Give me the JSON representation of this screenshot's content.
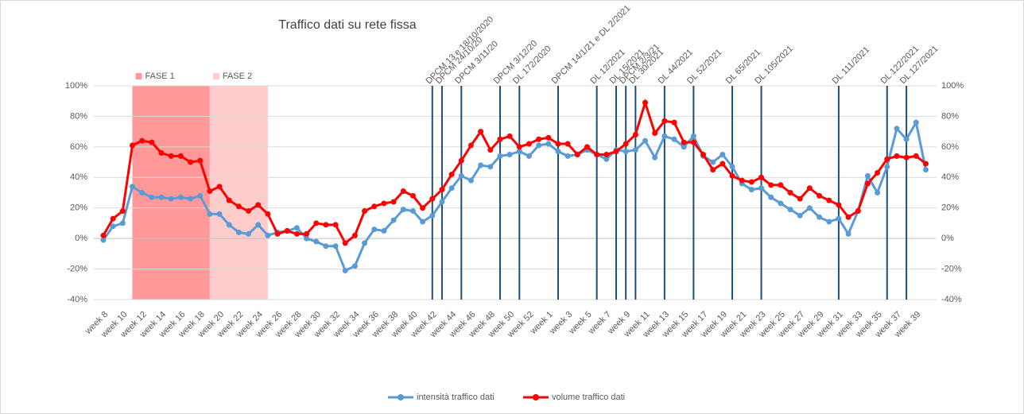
{
  "chart_data": {
    "type": "line",
    "title": "Traffico dati su rete fissa",
    "categories": [
      "week 8",
      null,
      "week 10",
      null,
      "week 12",
      null,
      "week 14",
      null,
      "week 16",
      null,
      "week 18",
      null,
      "week 20",
      null,
      "week 22",
      null,
      "week 24",
      null,
      "week 26",
      null,
      "week 28",
      null,
      "week 30",
      null,
      "week 32",
      null,
      "week 34",
      null,
      "week 36",
      null,
      "week 38",
      null,
      "week 40",
      null,
      "week 42",
      null,
      "week 44",
      null,
      "week 46",
      null,
      "week 48",
      null,
      "week 50",
      null,
      "week 52",
      null,
      "week 1",
      null,
      "week 3",
      null,
      "week 5",
      null,
      "week 7",
      null,
      "week 9",
      null,
      "week 11",
      null,
      "week 13",
      null,
      "week 15",
      null,
      "week 17",
      null,
      "week 19",
      null,
      "week 21",
      null,
      "week 23",
      null,
      "week 25",
      null,
      "week 27",
      null,
      "week 29",
      null,
      "week 31",
      null,
      "week 33",
      null,
      "week 35",
      null,
      "week 37",
      null,
      "week 39",
      null
    ],
    "series": [
      {
        "name": "intensità traffico dati",
        "color": "#5b9bd5",
        "values": [
          -1,
          8,
          10,
          34,
          30,
          27,
          27,
          26,
          27,
          26,
          28,
          16,
          16,
          9,
          4,
          3,
          9,
          2,
          4,
          5,
          7,
          0,
          -2,
          -5,
          -5,
          -21,
          -18,
          -3,
          6,
          5,
          12,
          19,
          18,
          11,
          15,
          24,
          33,
          41,
          38,
          48,
          47,
          54,
          55,
          57,
          54,
          61,
          62,
          57,
          54,
          55,
          58,
          55,
          52,
          58,
          57,
          58,
          64,
          53,
          67,
          65,
          60,
          67,
          54,
          50,
          55,
          47,
          36,
          32,
          33,
          27,
          23,
          19,
          15,
          20,
          14,
          11,
          13,
          3,
          18,
          41,
          30,
          47,
          72,
          65,
          76,
          45
        ]
      },
      {
        "name": "volume traffico dati",
        "color": "#ff0000",
        "values": [
          2,
          13,
          18,
          61,
          64,
          63,
          56,
          54,
          54,
          50,
          51,
          31,
          34,
          25,
          21,
          18,
          22,
          16,
          3,
          5,
          3,
          3,
          10,
          9,
          9,
          -3,
          2,
          18,
          21,
          23,
          24,
          31,
          28,
          20,
          26,
          32,
          42,
          51,
          61,
          70,
          58,
          65,
          67,
          60,
          62,
          65,
          66,
          62,
          62,
          55,
          60,
          55,
          55,
          57,
          62,
          68,
          89,
          69,
          77,
          76,
          63,
          63,
          55,
          45,
          49,
          41,
          38,
          37,
          40,
          35,
          35,
          30,
          26,
          33,
          28,
          25,
          22,
          14,
          18,
          36,
          43,
          52,
          54,
          53,
          54,
          49
        ]
      }
    ],
    "ylim": [
      -40,
      100
    ],
    "yticks": [
      {
        "value": -40,
        "label": "-40%"
      },
      {
        "value": -20,
        "label": "-20%"
      },
      {
        "value": 0,
        "label": "0%"
      },
      {
        "value": 20,
        "label": "20%"
      },
      {
        "value": 40,
        "label": "40%"
      },
      {
        "value": 60,
        "label": "60%"
      },
      {
        "value": 80,
        "label": "80%"
      },
      {
        "value": 100,
        "label": "100%"
      }
    ],
    "y2lim": [
      -40,
      100
    ],
    "y2ticks": [
      {
        "value": -40,
        "label": "-40%"
      },
      {
        "value": -20,
        "label": "-20%"
      },
      {
        "value": 0,
        "label": "0%"
      },
      {
        "value": 20,
        "label": "20%"
      },
      {
        "value": 40,
        "label": "40%"
      },
      {
        "value": 60,
        "label": "60%"
      },
      {
        "value": 80,
        "label": "80%"
      },
      {
        "value": 100,
        "label": "100%"
      }
    ],
    "bands": [
      {
        "label": "FASE 1",
        "from": 3,
        "to": 11,
        "color": "#ff9999"
      },
      {
        "label": "FASE 2",
        "from": 11,
        "to": 17,
        "color": "#ffcccc"
      }
    ],
    "annotations": [
      {
        "text": "DPCM 13 e 18/10/2020",
        "at": 34
      },
      {
        "text": "DPCM 24/10/20",
        "at": 35
      },
      {
        "text": "DPCM 3/11/20",
        "at": 37
      },
      {
        "text": "DPCM 3/12/20",
        "at": 41
      },
      {
        "text": "DL 172/2020",
        "at": 43
      },
      {
        "text": "DPCM 14/1/21 e DL 2/2021",
        "at": 47
      },
      {
        "text": "DL 12/2021",
        "at": 51
      },
      {
        "text": "DL 15/2021",
        "at": 53
      },
      {
        "text": "DPCM 2/3/21",
        "at": 54
      },
      {
        "text": "DL 30/2021",
        "at": 55
      },
      {
        "text": "DL 44/2021",
        "at": 58
      },
      {
        "text": "DL 52/2021",
        "at": 61
      },
      {
        "text": "DL 65/2021",
        "at": 65
      },
      {
        "text": "DL 105/2021",
        "at": 68
      },
      {
        "text": "DL 111/2021",
        "at": 76
      },
      {
        "text": "DL 122/2021",
        "at": 81
      },
      {
        "text": "DL 127/2021",
        "at": 83
      }
    ],
    "annotation_color": "#1f4e79",
    "legend": "bottom"
  }
}
